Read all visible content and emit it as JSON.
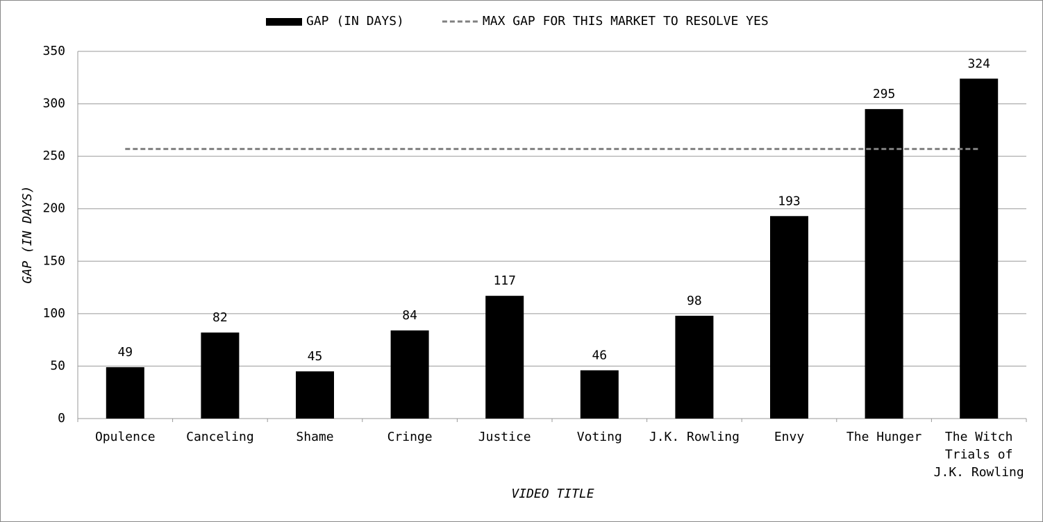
{
  "chart_data": {
    "type": "bar",
    "x_label": "VIDEO TITLE",
    "y_label": "GAP (IN DAYS)",
    "categories": [
      "Opulence",
      "Canceling",
      "Shame",
      "Cringe",
      "Justice",
      "Voting",
      "J.K. Rowling",
      "Envy",
      "The Hunger",
      "The Witch Trials of J.K. Rowling"
    ],
    "series": [
      {
        "name": "GAP (IN DAYS)",
        "type": "bar",
        "color": "#000000",
        "values": [
          49,
          82,
          45,
          84,
          117,
          46,
          98,
          193,
          295,
          324
        ]
      },
      {
        "name": "MAX GAP FOR THIS MARKET TO RESOLVE YES",
        "type": "line",
        "dashed": true,
        "color": "#808080",
        "values": [
          257,
          257,
          257,
          257,
          257,
          257,
          257,
          257,
          257,
          257
        ]
      }
    ],
    "ylim": [
      0,
      350
    ],
    "yticks": [
      0,
      50,
      100,
      150,
      200,
      250,
      300,
      350
    ],
    "grid": true,
    "legend": "top"
  }
}
